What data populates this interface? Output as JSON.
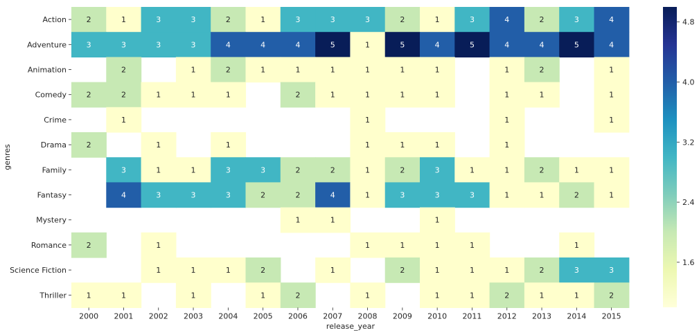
{
  "chart_data": {
    "type": "heatmap",
    "xlabel": "release_year",
    "ylabel": "genres",
    "x_categories": [
      "2000",
      "2001",
      "2002",
      "2003",
      "2004",
      "2005",
      "2006",
      "2007",
      "2008",
      "2009",
      "2010",
      "2011",
      "2012",
      "2013",
      "2014",
      "2015"
    ],
    "y_categories": [
      "Action",
      "Adventure",
      "Animation",
      "Comedy",
      "Crime",
      "Drama",
      "Family",
      "Fantasy",
      "Mystery",
      "Romance",
      "Science Fiction",
      "Thriller"
    ],
    "values": [
      [
        2,
        1,
        3,
        3,
        2,
        1,
        3,
        3,
        3,
        2,
        1,
        3,
        4,
        2,
        3,
        4
      ],
      [
        3,
        3,
        3,
        3,
        4,
        4,
        4,
        5,
        1,
        5,
        4,
        5,
        4,
        4,
        5,
        4
      ],
      [
        null,
        2,
        null,
        1,
        2,
        1,
        1,
        1,
        1,
        1,
        1,
        null,
        1,
        2,
        null,
        1
      ],
      [
        2,
        2,
        1,
        1,
        1,
        null,
        2,
        1,
        1,
        1,
        1,
        null,
        1,
        1,
        null,
        1
      ],
      [
        null,
        1,
        null,
        null,
        null,
        null,
        null,
        null,
        1,
        null,
        null,
        null,
        1,
        null,
        null,
        1
      ],
      [
        2,
        null,
        1,
        null,
        1,
        null,
        null,
        null,
        1,
        1,
        1,
        null,
        1,
        null,
        null,
        null
      ],
      [
        null,
        3,
        1,
        1,
        3,
        3,
        2,
        2,
        1,
        2,
        3,
        1,
        1,
        2,
        1,
        1
      ],
      [
        null,
        4,
        3,
        3,
        3,
        2,
        2,
        4,
        1,
        3,
        3,
        3,
        1,
        1,
        2,
        1
      ],
      [
        null,
        null,
        null,
        null,
        null,
        null,
        1,
        1,
        null,
        null,
        1,
        null,
        null,
        null,
        null,
        null
      ],
      [
        2,
        null,
        1,
        null,
        null,
        null,
        null,
        null,
        1,
        1,
        1,
        1,
        null,
        null,
        1,
        null
      ],
      [
        null,
        null,
        1,
        1,
        1,
        2,
        null,
        1,
        null,
        2,
        1,
        1,
        1,
        2,
        3,
        3
      ],
      [
        1,
        1,
        null,
        1,
        null,
        1,
        2,
        null,
        1,
        null,
        1,
        1,
        2,
        1,
        1,
        2
      ]
    ],
    "colormap": "YlGnBu",
    "color_range": [
      1,
      5
    ],
    "colorbar_ticks": [
      "1.6",
      "2.4",
      "3.2",
      "4.0",
      "4.8"
    ],
    "colors": {
      "1": "#ffffcc",
      "2": "#c7e9b4",
      "3": "#41b6c4",
      "4": "#225ea8",
      "5": "#081d58",
      "label_dark": "#262626",
      "label_light": "#ffffff"
    }
  }
}
